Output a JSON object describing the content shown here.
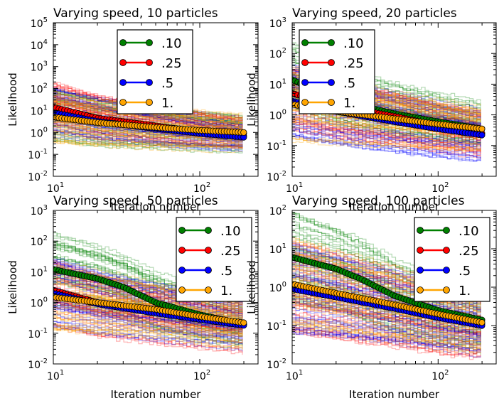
{
  "chart_data": [
    {
      "type": "line",
      "title": "Varying speed,  10 particles",
      "xlabel": "Iteration number",
      "ylabel": "Likelihood",
      "xscale": "log",
      "yscale": "log",
      "xlim": [
        10,
        250
      ],
      "ylim": [
        0.01,
        100000
      ],
      "legend_position": "upper-center",
      "series": [
        {
          "name": ".10",
          "color": "#008000",
          "x": [
            10,
            20,
            50,
            100,
            200
          ],
          "y": [
            6,
            3,
            1.8,
            1.2,
            0.9
          ]
        },
        {
          "name": ".25",
          "color": "#ff0000",
          "x": [
            10,
            20,
            50,
            100,
            200
          ],
          "y": [
            14,
            4.5,
            2.0,
            1.1,
            0.7
          ]
        },
        {
          "name": ".5",
          "color": "#0000ff",
          "x": [
            10,
            20,
            50,
            100,
            200
          ],
          "y": [
            8,
            3.2,
            1.5,
            0.9,
            0.6
          ]
        },
        {
          "name": "1.",
          "color": "#ffa500",
          "x": [
            10,
            20,
            50,
            100,
            200
          ],
          "y": [
            5,
            2.8,
            1.7,
            1.25,
            1.0
          ]
        }
      ]
    },
    {
      "type": "line",
      "title": "Varying speed,  20 particles",
      "xlabel": "Iteration number",
      "ylabel": "Likelihood",
      "xscale": "log",
      "yscale": "log",
      "xlim": [
        10,
        250
      ],
      "ylim": [
        0.01,
        1000
      ],
      "legend_position": "upper-left",
      "series": [
        {
          "name": ".10",
          "color": "#008000",
          "x": [
            10,
            20,
            50,
            100,
            200
          ],
          "y": [
            14,
            3,
            1.1,
            0.6,
            0.35
          ]
        },
        {
          "name": ".25",
          "color": "#ff0000",
          "x": [
            10,
            20,
            50,
            100,
            200
          ],
          "y": [
            5,
            2.0,
            0.9,
            0.45,
            0.25
          ]
        },
        {
          "name": ".5",
          "color": "#0000ff",
          "x": [
            10,
            20,
            50,
            100,
            200
          ],
          "y": [
            2.8,
            1.3,
            0.6,
            0.35,
            0.22
          ]
        },
        {
          "name": "1.",
          "color": "#ffa500",
          "x": [
            10,
            20,
            50,
            100,
            200
          ],
          "y": [
            2.2,
            1.3,
            0.75,
            0.5,
            0.35
          ]
        }
      ]
    },
    {
      "type": "line",
      "title": "Varying speed,  50 particles",
      "xlabel": "Iteration number",
      "ylabel": "Likelihood",
      "xscale": "log",
      "yscale": "log",
      "xlim": [
        10,
        250
      ],
      "ylim": [
        0.01,
        1000
      ],
      "legend_position": "upper-right",
      "series": [
        {
          "name": ".10",
          "color": "#008000",
          "x": [
            10,
            20,
            30,
            50,
            100,
            200
          ],
          "y": [
            12,
            6,
            3.2,
            1.0,
            0.4,
            0.2
          ]
        },
        {
          "name": ".25",
          "color": "#ff0000",
          "x": [
            10,
            20,
            50,
            100,
            200
          ],
          "y": [
            2.5,
            1.0,
            0.5,
            0.3,
            0.19
          ]
        },
        {
          "name": ".5",
          "color": "#0000ff",
          "x": [
            10,
            20,
            50,
            100,
            200
          ],
          "y": [
            2.0,
            0.9,
            0.45,
            0.28,
            0.18
          ]
        },
        {
          "name": "1.",
          "color": "#ffa500",
          "x": [
            10,
            20,
            50,
            100,
            200
          ],
          "y": [
            1.5,
            1.0,
            0.6,
            0.35,
            0.22
          ]
        }
      ]
    },
    {
      "type": "line",
      "title": "Varying speed,  100 particles",
      "xlabel": "Iteration number",
      "ylabel": "Likelihood",
      "xscale": "log",
      "yscale": "log",
      "xlim": [
        10,
        250
      ],
      "ylim": [
        0.01,
        100
      ],
      "legend_position": "upper-right",
      "series": [
        {
          "name": ".10",
          "color": "#008000",
          "x": [
            10,
            20,
            30,
            50,
            100,
            200
          ],
          "y": [
            6,
            3,
            1.6,
            0.6,
            0.25,
            0.14
          ]
        },
        {
          "name": ".25",
          "color": "#ff0000",
          "x": [
            10,
            20,
            50,
            100,
            200
          ],
          "y": [
            1.0,
            0.6,
            0.3,
            0.17,
            0.11
          ]
        },
        {
          "name": ".5",
          "color": "#0000ff",
          "x": [
            10,
            20,
            50,
            100,
            200
          ],
          "y": [
            0.9,
            0.55,
            0.28,
            0.16,
            0.1
          ]
        },
        {
          "name": "1.",
          "color": "#ffa500",
          "x": [
            10,
            20,
            50,
            100,
            200
          ],
          "y": [
            1.2,
            0.7,
            0.35,
            0.2,
            0.12
          ]
        }
      ]
    }
  ]
}
